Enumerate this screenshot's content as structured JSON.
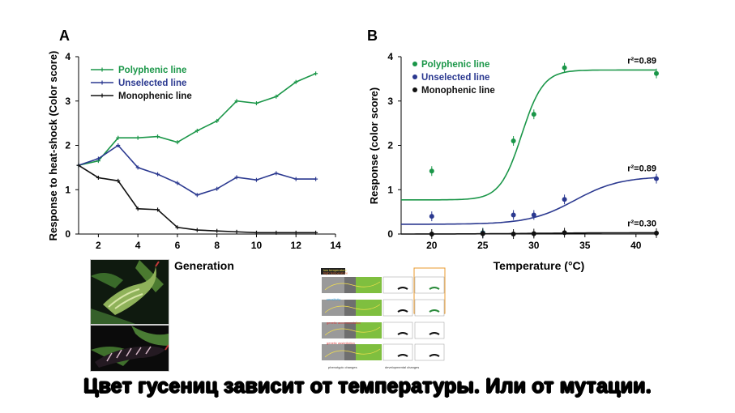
{
  "caption": "Цвет гусениц зависит от температуры. Или от мутации.",
  "colors": {
    "polyphenic": "#1a9648",
    "unselected": "#2b3990",
    "monophenic": "#111111"
  },
  "icons": [
    "caterpillar-green-photo",
    "caterpillar-black-photo",
    "experiment-diagram"
  ],
  "diagram": {
    "legend": [
      "low temperature",
      "high temperature"
    ],
    "labels": [
      "sensitivity",
      "genetic accommodation",
      "genetic assimilation",
      "phenotypic changes",
      "developmental changes"
    ]
  },
  "chart_data": [
    {
      "type": "line",
      "panel": "A",
      "xlabel": "Generation",
      "ylabel": "Response to heat-shock (Color score)",
      "xlim": [
        1,
        14
      ],
      "ylim": [
        0,
        4
      ],
      "xticks": [
        2,
        4,
        6,
        8,
        10,
        12,
        14
      ],
      "yticks": [
        0,
        1,
        2,
        3,
        4
      ],
      "legend_position": "top-left",
      "series": [
        {
          "name": "Polyphenic line",
          "color": "#1a9648",
          "x": [
            1,
            2,
            3,
            4,
            5,
            6,
            7,
            8,
            9,
            10,
            11,
            12,
            13
          ],
          "y": [
            1.55,
            1.65,
            2.17,
            2.17,
            2.2,
            2.07,
            2.33,
            2.55,
            3.0,
            2.95,
            3.1,
            3.43,
            3.62
          ]
        },
        {
          "name": "Unselected line",
          "color": "#2b3990",
          "x": [
            1,
            2,
            3,
            4,
            5,
            6,
            7,
            8,
            9,
            10,
            11,
            12,
            13
          ],
          "y": [
            1.55,
            1.7,
            2.0,
            1.5,
            1.35,
            1.15,
            0.88,
            1.02,
            1.28,
            1.22,
            1.37,
            1.24,
            1.24
          ]
        },
        {
          "name": "Monophenic line",
          "color": "#111111",
          "x": [
            1,
            2,
            3,
            4,
            5,
            6,
            7,
            8,
            9,
            10,
            11,
            12,
            13
          ],
          "y": [
            1.55,
            1.27,
            1.2,
            0.57,
            0.55,
            0.15,
            0.09,
            0.07,
            0.05,
            0.03,
            0.03,
            0.03,
            0.03
          ]
        }
      ]
    },
    {
      "type": "scatter",
      "panel": "B",
      "xlabel": "Temperature (°C)",
      "ylabel": "Response (color score)",
      "xlim": [
        17,
        42
      ],
      "ylim": [
        0,
        4
      ],
      "xticks": [
        20,
        25,
        30,
        35,
        40
      ],
      "yticks": [
        0,
        1,
        2,
        3,
        4
      ],
      "legend_position": "top-left",
      "series": [
        {
          "name": "Polyphenic line",
          "color": "#1a9648",
          "r2": "r²=0.89",
          "x": [
            20,
            25,
            28,
            30,
            33,
            42
          ],
          "y": [
            1.42,
            0.03,
            2.1,
            2.7,
            3.75,
            3.62
          ],
          "fit": {
            "base": 0.77,
            "top": 3.7,
            "mid": 28.8,
            "k": 0.95
          }
        },
        {
          "name": "Unselected line",
          "color": "#2b3990",
          "r2": "r²=0.89",
          "x": [
            20,
            25,
            28,
            30,
            33,
            42
          ],
          "y": [
            0.4,
            0.02,
            0.43,
            0.43,
            0.78,
            1.25
          ],
          "fit": {
            "base": 0.22,
            "top": 1.3,
            "mid": 34,
            "k": 0.45
          }
        },
        {
          "name": "Monophenic line",
          "color": "#111111",
          "r2": "r²=0.30",
          "x": [
            20,
            25,
            28,
            30,
            33,
            42
          ],
          "y": [
            0.0,
            0.01,
            0.0,
            0.01,
            0.03,
            0.02
          ],
          "fit": {
            "base": 0.0,
            "top": 0.03,
            "mid": 30,
            "k": 0.3
          }
        }
      ]
    }
  ]
}
